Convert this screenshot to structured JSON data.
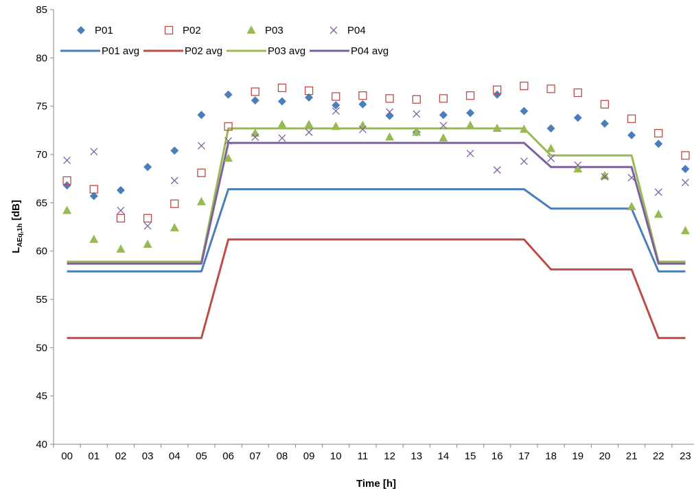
{
  "chart_data": {
    "type": "scatter+line",
    "categories": [
      "00",
      "01",
      "02",
      "03",
      "04",
      "05",
      "06",
      "07",
      "08",
      "09",
      "10",
      "11",
      "12",
      "13",
      "14",
      "15",
      "16",
      "17",
      "18",
      "19",
      "20",
      "21",
      "22",
      "23"
    ],
    "xlabel": "Time [h]",
    "ylabel_main": "L",
    "ylabel_sub": "AEq,1h",
    "ylabel_unit": " [dB]",
    "ylim": [
      40,
      85
    ],
    "yticks": [
      "40",
      "45",
      "50",
      "55",
      "60",
      "65",
      "70",
      "75",
      "80",
      "85"
    ],
    "grid": false,
    "legend_position": "top-left",
    "series": [
      {
        "name": "P01",
        "kind": "marker",
        "marker": "diamond",
        "color": "#4a7ebb",
        "values": [
          66.8,
          65.7,
          66.3,
          68.7,
          70.4,
          74.1,
          76.2,
          75.6,
          75.5,
          75.9,
          75.1,
          75.2,
          74.0,
          72.3,
          74.1,
          74.3,
          76.2,
          74.5,
          72.7,
          73.8,
          73.2,
          72.0,
          71.1,
          68.5
        ]
      },
      {
        "name": "P02",
        "kind": "marker",
        "marker": "square-open",
        "color": "#be4b48",
        "values": [
          67.3,
          66.4,
          63.4,
          63.4,
          64.9,
          68.1,
          72.9,
          76.5,
          76.9,
          76.6,
          76.0,
          76.1,
          75.8,
          75.7,
          75.8,
          76.1,
          76.7,
          77.1,
          76.8,
          76.4,
          75.2,
          73.7,
          72.2,
          69.9
        ]
      },
      {
        "name": "P03",
        "kind": "marker",
        "marker": "triangle",
        "color": "#98b954",
        "values": [
          64.2,
          61.2,
          60.2,
          60.7,
          62.4,
          65.1,
          69.6,
          72.2,
          73.1,
          73.1,
          72.9,
          73.0,
          71.8,
          72.3,
          71.7,
          73.0,
          72.7,
          72.6,
          70.6,
          68.5,
          67.8,
          64.6,
          63.8,
          62.1
        ]
      },
      {
        "name": "P04",
        "kind": "marker",
        "marker": "x",
        "color": "#7d60a0",
        "values": [
          69.4,
          70.3,
          64.2,
          62.6,
          67.3,
          70.9,
          71.4,
          71.8,
          71.7,
          72.3,
          74.5,
          72.6,
          74.4,
          74.2,
          73.0,
          70.1,
          68.4,
          69.3,
          69.6,
          68.9,
          67.7,
          67.6,
          66.1,
          67.1
        ]
      },
      {
        "name": "P01 avg",
        "kind": "line",
        "color": "#4a7ebb",
        "values": [
          57.9,
          57.9,
          57.9,
          57.9,
          57.9,
          57.9,
          66.4,
          66.4,
          66.4,
          66.4,
          66.4,
          66.4,
          66.4,
          66.4,
          66.4,
          66.4,
          66.4,
          66.4,
          64.4,
          64.4,
          64.4,
          64.4,
          57.9,
          57.9
        ]
      },
      {
        "name": "P02 avg",
        "kind": "line",
        "color": "#be4b48",
        "values": [
          51.0,
          51.0,
          51.0,
          51.0,
          51.0,
          51.0,
          61.2,
          61.2,
          61.2,
          61.2,
          61.2,
          61.2,
          61.2,
          61.2,
          61.2,
          61.2,
          61.2,
          61.2,
          58.1,
          58.1,
          58.1,
          58.1,
          51.0,
          51.0
        ]
      },
      {
        "name": "P03 avg",
        "kind": "line",
        "color": "#98b954",
        "values": [
          58.9,
          58.9,
          58.9,
          58.9,
          58.9,
          58.9,
          72.7,
          72.7,
          72.7,
          72.7,
          72.7,
          72.7,
          72.7,
          72.7,
          72.7,
          72.7,
          72.7,
          72.7,
          69.9,
          69.9,
          69.9,
          69.9,
          58.9,
          58.9
        ]
      },
      {
        "name": "P04 avg",
        "kind": "line",
        "color": "#7d60a0",
        "values": [
          58.7,
          58.7,
          58.7,
          58.7,
          58.7,
          58.7,
          71.2,
          71.2,
          71.2,
          71.2,
          71.2,
          71.2,
          71.2,
          71.2,
          71.2,
          71.2,
          71.2,
          71.2,
          68.7,
          68.7,
          68.7,
          68.7,
          58.7,
          58.7
        ]
      }
    ]
  }
}
